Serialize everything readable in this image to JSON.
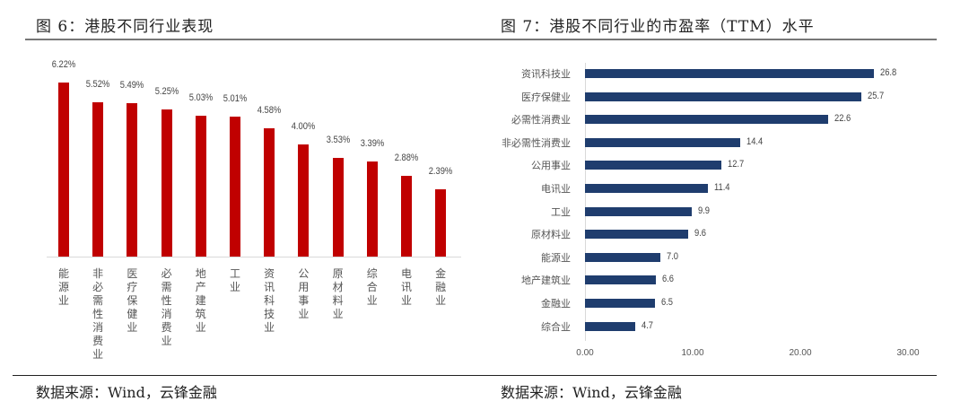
{
  "left": {
    "title": "图 6：港股不同行业表现",
    "source": "数据来源：Wind，云锋金融"
  },
  "right": {
    "title": "图 7：港股不同行业的市盈率（TTM）水平",
    "source": "数据来源：Wind，云锋金融"
  },
  "colors": {
    "left_bar": "#c00000",
    "right_bar": "#1f3d6e"
  },
  "chart_data": [
    {
      "type": "bar",
      "orientation": "vertical",
      "title": "图 6：港股不同行业表现",
      "xlabel": "",
      "ylabel": "",
      "categories": [
        "能源业",
        "非必需性消费业",
        "医疗保健业",
        "必需性消费业",
        "地产建筑业",
        "工业",
        "资讯科技业",
        "公用事业",
        "原材料业",
        "综合业",
        "电讯业",
        "金融业"
      ],
      "values": [
        6.22,
        5.52,
        5.49,
        5.25,
        5.03,
        5.01,
        4.58,
        4.0,
        3.53,
        3.39,
        2.88,
        2.39
      ],
      "value_labels": [
        "6.22%",
        "5.52%",
        "5.49%",
        "5.25%",
        "5.03%",
        "5.01%",
        "4.58%",
        "4.00%",
        "3.53%",
        "3.39%",
        "2.88%",
        "2.39%"
      ],
      "unit": "%",
      "grid": false,
      "legend": null
    },
    {
      "type": "bar",
      "orientation": "horizontal",
      "title": "图 7：港股不同行业的市盈率（TTM）水平",
      "xlabel": "",
      "ylabel": "",
      "categories": [
        "资讯科技业",
        "医疗保健业",
        "必需性消费业",
        "非必需性消费业",
        "公用事业",
        "电讯业",
        "工业",
        "原材料业",
        "能源业",
        "地产建筑业",
        "金融业",
        "综合业"
      ],
      "values": [
        26.8,
        25.7,
        22.6,
        14.4,
        12.7,
        11.4,
        9.9,
        9.6,
        7.0,
        6.6,
        6.5,
        4.7
      ],
      "value_labels": [
        "26.8",
        "25.7",
        "22.6",
        "14.4",
        "12.7",
        "11.4",
        "9.9",
        "9.6",
        "7.0",
        "6.6",
        "6.5",
        "4.7"
      ],
      "xlim": [
        0,
        30
      ],
      "xticks": [
        "0.00",
        "10.00",
        "20.00",
        "30.00"
      ],
      "grid": false,
      "legend": null
    }
  ]
}
